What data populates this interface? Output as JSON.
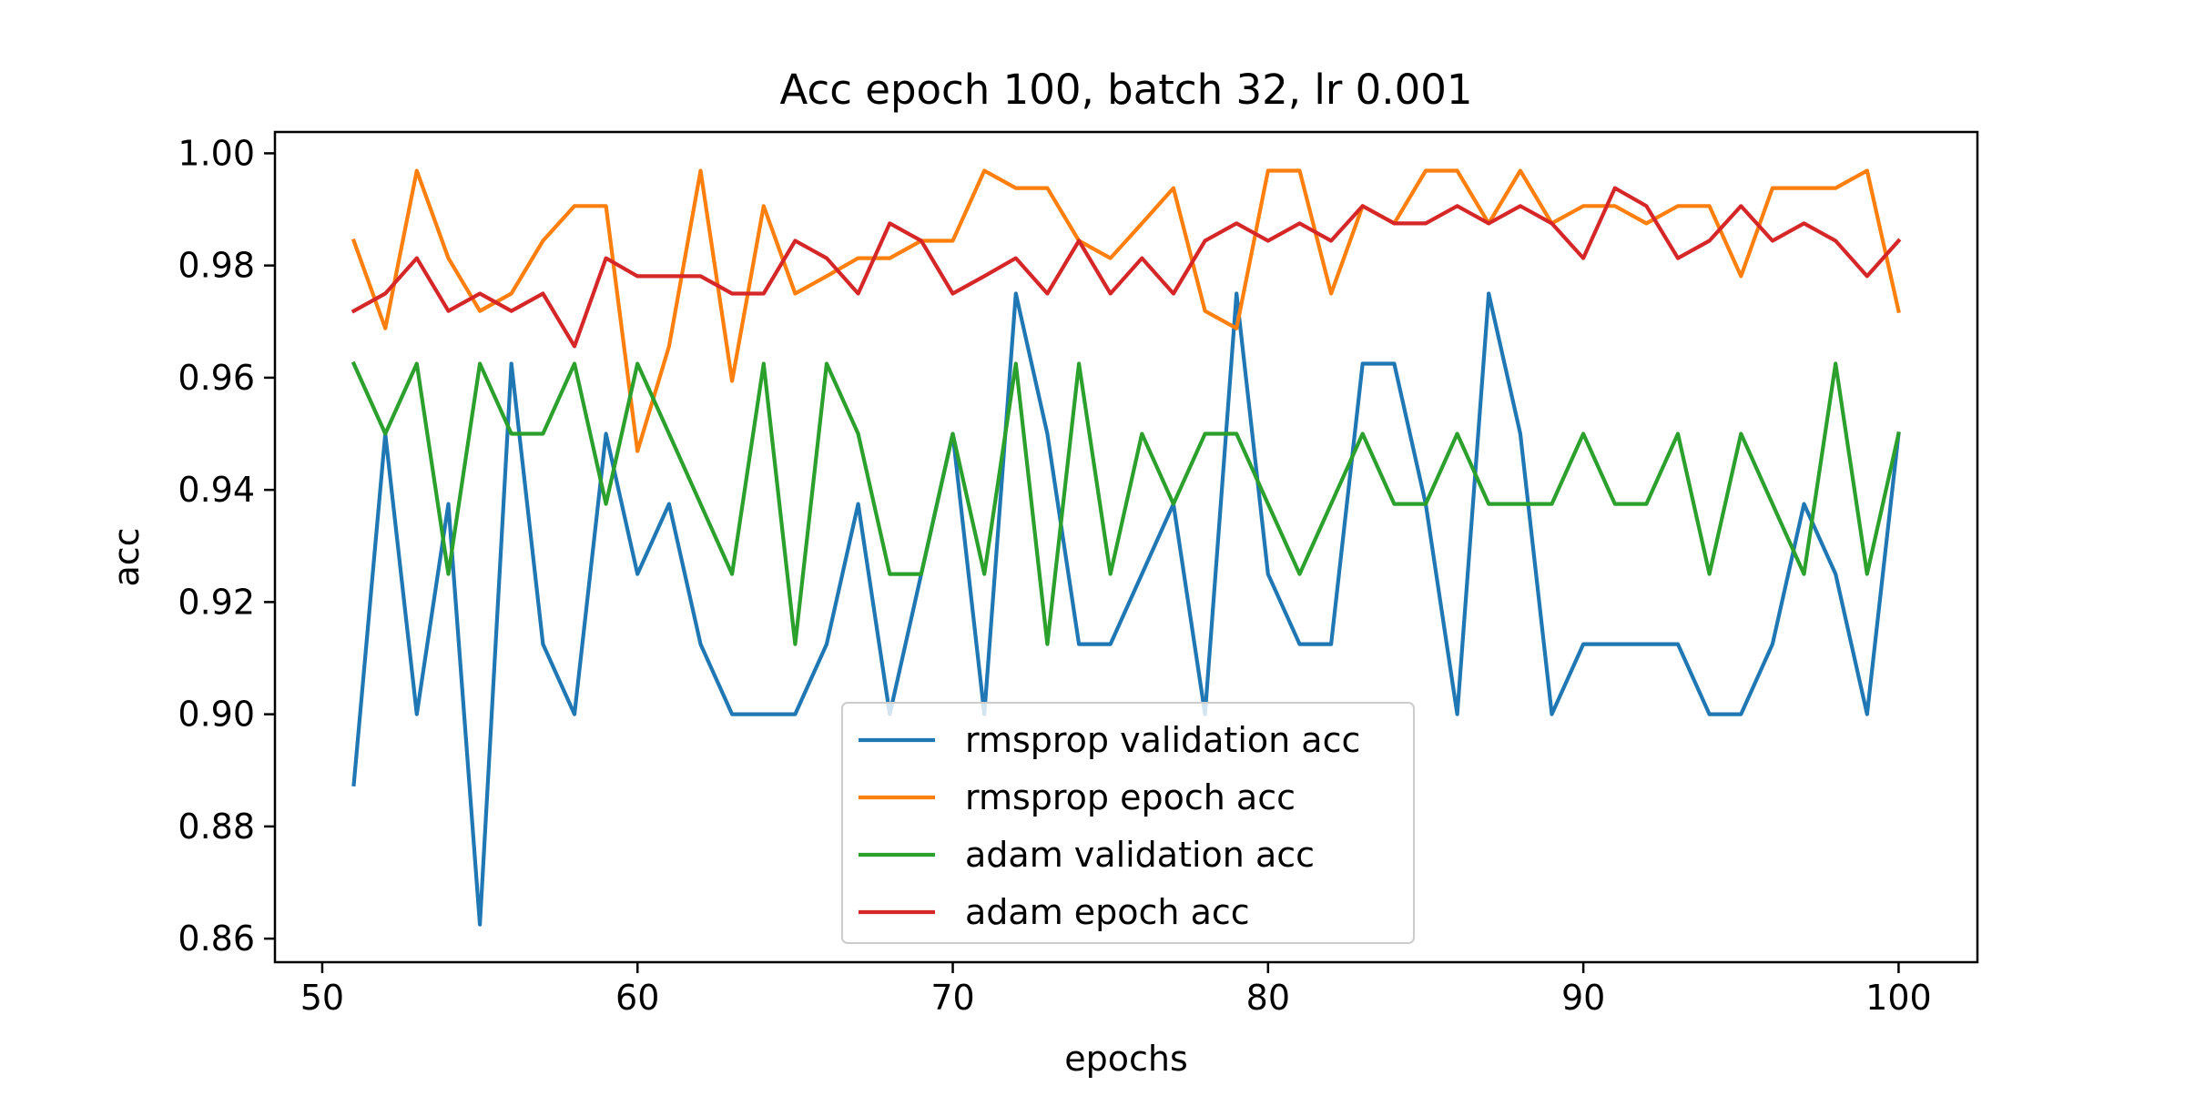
{
  "chart_data": {
    "type": "line",
    "title": "Acc epoch 100, batch 32, lr 0.001",
    "xlabel": "epochs",
    "ylabel": "acc",
    "xlim": [
      48.5,
      102.5
    ],
    "ylim": [
      0.8558,
      1.0038
    ],
    "xticks": [
      50,
      60,
      70,
      80,
      90,
      100
    ],
    "xtick_labels": [
      "50",
      "60",
      "70",
      "80",
      "90",
      "100"
    ],
    "yticks": [
      0.86,
      0.88,
      0.9,
      0.92,
      0.94,
      0.96,
      0.98,
      1.0
    ],
    "ytick_labels": [
      "0.86",
      "0.88",
      "0.90",
      "0.92",
      "0.94",
      "0.96",
      "0.98",
      "1.00"
    ],
    "grid": false,
    "legend_position": "bottom-center",
    "x": [
      51,
      52,
      53,
      54,
      55,
      56,
      57,
      58,
      59,
      60,
      61,
      62,
      63,
      64,
      65,
      66,
      67,
      68,
      69,
      70,
      71,
      72,
      73,
      74,
      75,
      76,
      77,
      78,
      79,
      80,
      81,
      82,
      83,
      84,
      85,
      86,
      87,
      88,
      89,
      90,
      91,
      92,
      93,
      94,
      95,
      96,
      97,
      98,
      99,
      100
    ],
    "series": [
      {
        "name": "rmsprop validation acc",
        "color": "#1f77b4",
        "values": [
          0.8875,
          0.95,
          0.9,
          0.9375,
          0.8625,
          0.9625,
          0.9125,
          0.9,
          0.95,
          0.925,
          0.9375,
          0.9125,
          0.9,
          0.9,
          0.9,
          0.9125,
          0.9375,
          0.9,
          0.925,
          0.95,
          0.9,
          0.975,
          0.95,
          0.9125,
          0.9125,
          0.925,
          0.9375,
          0.9,
          0.975,
          0.925,
          0.9125,
          0.9125,
          0.9625,
          0.9625,
          0.9375,
          0.9,
          0.975,
          0.95,
          0.9,
          0.9125,
          0.9125,
          0.9125,
          0.9125,
          0.9,
          0.9,
          0.9125,
          0.9375,
          0.925,
          0.9,
          0.95
        ]
      },
      {
        "name": "rmsprop epoch acc",
        "color": "#ff7f0e",
        "values": [
          0.9844,
          0.9688,
          0.9969,
          0.9813,
          0.9719,
          0.975,
          0.9844,
          0.9906,
          0.9906,
          0.9469,
          0.9656,
          0.9969,
          0.9594,
          0.9906,
          0.975,
          0.9781,
          0.9813,
          0.9813,
          0.9844,
          0.9844,
          0.9969,
          0.9938,
          0.9938,
          0.9844,
          0.9813,
          0.9875,
          0.9938,
          0.9719,
          0.9688,
          0.9969,
          0.9969,
          0.975,
          0.9906,
          0.9875,
          0.9969,
          0.9969,
          0.9875,
          0.9969,
          0.9875,
          0.9906,
          0.9906,
          0.9875,
          0.9906,
          0.9906,
          0.9781,
          0.9938,
          0.9938,
          0.9938,
          0.9969,
          0.9719
        ]
      },
      {
        "name": "adam validation acc",
        "color": "#2ca02c",
        "values": [
          0.9625,
          0.95,
          0.9625,
          0.925,
          0.9625,
          0.95,
          0.95,
          0.9625,
          0.9375,
          0.9625,
          0.95,
          0.9375,
          0.925,
          0.9625,
          0.9125,
          0.9625,
          0.95,
          0.925,
          0.925,
          0.95,
          0.925,
          0.9625,
          0.9125,
          0.9625,
          0.925,
          0.95,
          0.9375,
          0.95,
          0.95,
          0.9375,
          0.925,
          0.9375,
          0.95,
          0.9375,
          0.9375,
          0.95,
          0.9375,
          0.9375,
          0.9375,
          0.95,
          0.9375,
          0.9375,
          0.95,
          0.925,
          0.95,
          0.9375,
          0.925,
          0.9625,
          0.925,
          0.95
        ]
      },
      {
        "name": "adam epoch acc",
        "color": "#d62728",
        "values": [
          0.9719,
          0.975,
          0.9813,
          0.9719,
          0.975,
          0.9719,
          0.975,
          0.9656,
          0.9813,
          0.9781,
          0.9781,
          0.9781,
          0.975,
          0.975,
          0.9844,
          0.9813,
          0.975,
          0.9875,
          0.9844,
          0.975,
          0.9781,
          0.9813,
          0.975,
          0.9844,
          0.975,
          0.9813,
          0.975,
          0.9844,
          0.9875,
          0.9844,
          0.9875,
          0.9844,
          0.9906,
          0.9875,
          0.9875,
          0.9906,
          0.9875,
          0.9906,
          0.9875,
          0.9813,
          0.9938,
          0.9906,
          0.9813,
          0.9844,
          0.9906,
          0.9844,
          0.9875,
          0.9844,
          0.9781,
          0.9844
        ]
      }
    ]
  }
}
